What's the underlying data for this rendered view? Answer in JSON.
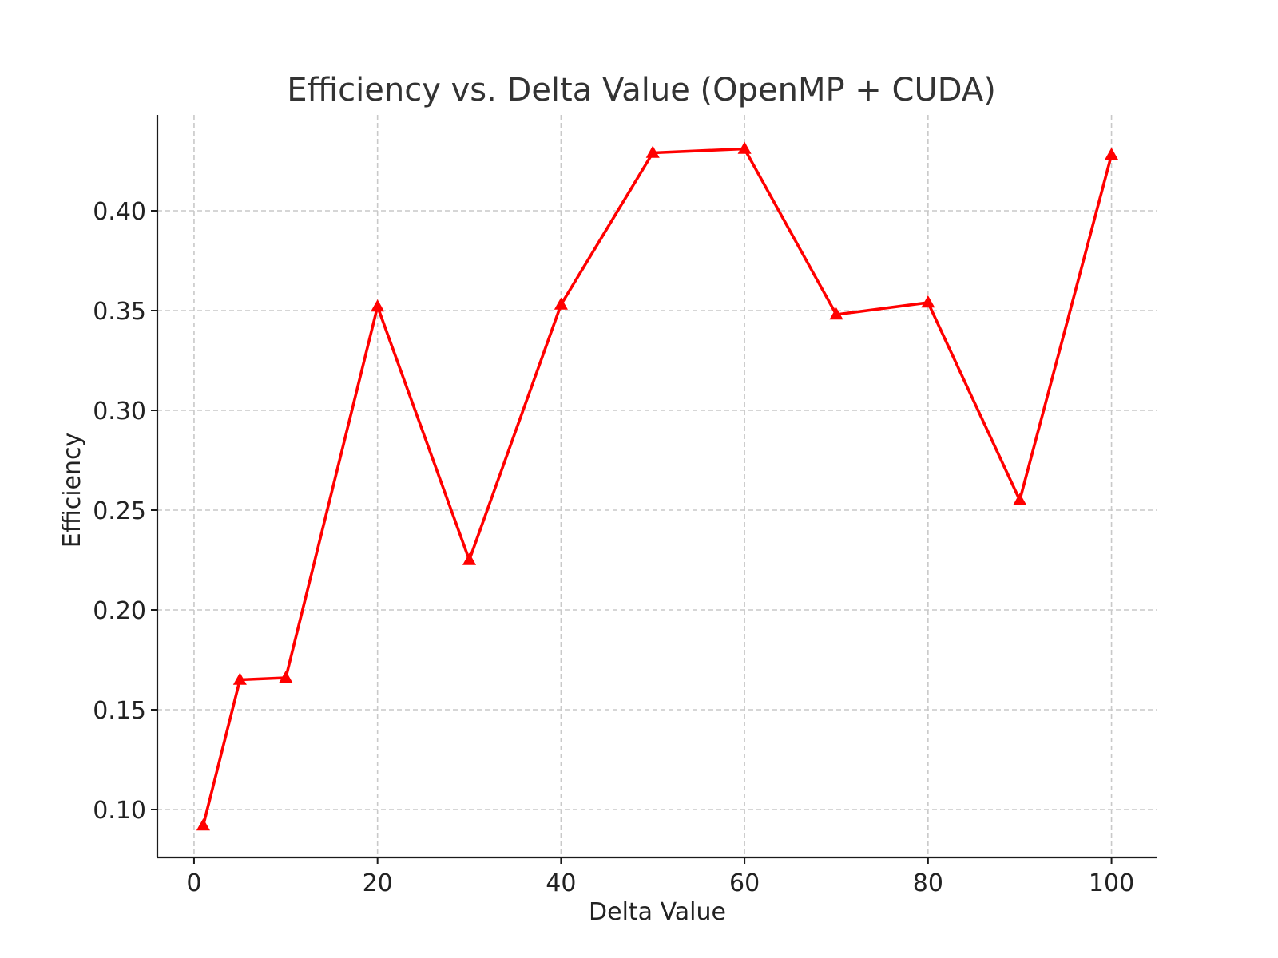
{
  "chart_data": {
    "type": "line",
    "title": "Efficiency vs. Delta Value (OpenMP + CUDA)",
    "xlabel": "Delta Value",
    "ylabel": "Efficiency",
    "xlim": [
      -4,
      105
    ],
    "ylim": [
      0.076,
      0.448
    ],
    "xticks": [
      0,
      20,
      40,
      60,
      80,
      100
    ],
    "xtick_labels": [
      "0",
      "20",
      "40",
      "60",
      "80",
      "100"
    ],
    "yticks": [
      0.1,
      0.15,
      0.2,
      0.25,
      0.3,
      0.35,
      0.4
    ],
    "ytick_labels": [
      "0.10",
      "0.15",
      "0.20",
      "0.25",
      "0.30",
      "0.35",
      "0.40"
    ],
    "grid": true,
    "legend": false,
    "series": [
      {
        "color": "#ff0000",
        "marker": "triangle-up",
        "x": [
          1,
          5,
          10,
          20,
          30,
          40,
          50,
          60,
          70,
          80,
          90,
          100
        ],
        "y": [
          0.092,
          0.165,
          0.166,
          0.352,
          0.225,
          0.353,
          0.429,
          0.431,
          0.348,
          0.354,
          0.255,
          0.428
        ]
      }
    ]
  }
}
